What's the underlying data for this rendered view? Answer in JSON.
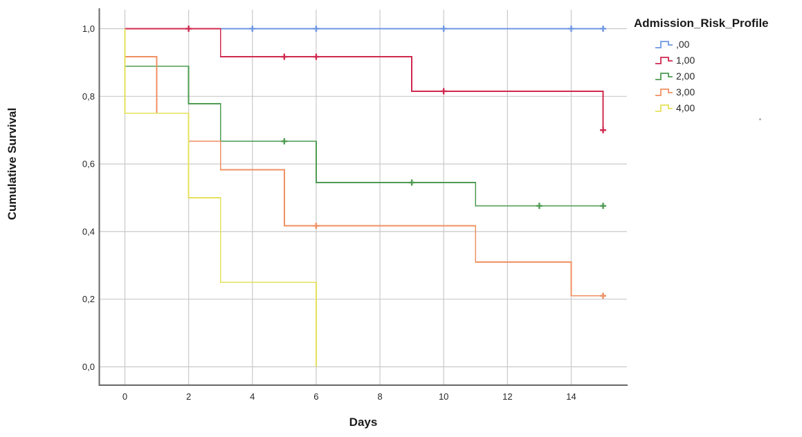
{
  "chart_data": {
    "type": "line",
    "subtype": "kaplan-meier-step-survival",
    "title": "",
    "xlabel": "Days",
    "ylabel": "Cumulative Survival",
    "x_ticks": [
      0,
      2,
      4,
      6,
      8,
      10,
      12,
      14
    ],
    "x_tick_labels": [
      "0",
      "2",
      "4",
      "6",
      "8",
      "10",
      "12",
      "14"
    ],
    "y_ticks": [
      0.0,
      0.2,
      0.4,
      0.6,
      0.8,
      1.0
    ],
    "y_tick_labels": [
      "0,0",
      "0,2",
      "0,4",
      "0,6",
      "0,8",
      "1,0"
    ],
    "xlim": [
      -0.8,
      15.8
    ],
    "ylim": [
      -0.06,
      1.06
    ],
    "grid": true,
    "legend_title": "Admission_Risk_Profile",
    "legend_position": "outside-top-right",
    "colors": {
      "grid": "#c9c9c9",
      "axis": "#666666",
      "tick_text": "#262626"
    },
    "series": [
      {
        "name": ",00",
        "color": "#6E97E3",
        "drop_from_one": false,
        "steps": [
          [
            0,
            1.0
          ],
          [
            15,
            1.0
          ]
        ],
        "censor_marks": [
          [
            4,
            1.0
          ],
          [
            6,
            1.0
          ],
          [
            10,
            1.0
          ],
          [
            14,
            1.0
          ],
          [
            15,
            1.0
          ]
        ]
      },
      {
        "name": "1,00",
        "color": "#D0284F",
        "drop_from_one": false,
        "steps": [
          [
            0,
            1.0
          ],
          [
            3,
            0.917
          ],
          [
            9,
            0.815
          ],
          [
            15,
            0.7
          ]
        ],
        "censor_marks": [
          [
            2,
            1.0
          ],
          [
            5,
            0.917
          ],
          [
            6,
            0.917
          ],
          [
            10,
            0.815
          ],
          [
            15,
            0.7
          ]
        ]
      },
      {
        "name": "2,00",
        "color": "#4E9B52",
        "drop_from_one": true,
        "steps": [
          [
            0,
            0.889
          ],
          [
            2,
            0.778
          ],
          [
            3,
            0.667
          ],
          [
            6,
            0.545
          ],
          [
            11,
            0.476
          ],
          [
            15,
            0.476
          ]
        ],
        "censor_marks": [
          [
            5,
            0.667
          ],
          [
            9,
            0.545
          ],
          [
            13,
            0.476
          ],
          [
            15,
            0.476
          ]
        ]
      },
      {
        "name": "3,00",
        "color": "#F09062",
        "drop_from_one": true,
        "steps": [
          [
            0,
            0.917
          ],
          [
            1,
            0.75
          ],
          [
            2,
            0.667
          ],
          [
            3,
            0.583
          ],
          [
            5,
            0.417
          ],
          [
            11,
            0.31
          ],
          [
            14,
            0.21
          ],
          [
            15,
            0.21
          ]
        ],
        "censor_marks": [
          [
            6,
            0.417
          ],
          [
            15,
            0.21
          ]
        ]
      },
      {
        "name": "4,00",
        "color": "#E5E05C",
        "drop_from_one": true,
        "steps": [
          [
            0,
            0.75
          ],
          [
            2,
            0.5
          ],
          [
            3,
            0.25
          ],
          [
            6,
            0.0
          ]
        ],
        "censor_marks": []
      }
    ]
  }
}
